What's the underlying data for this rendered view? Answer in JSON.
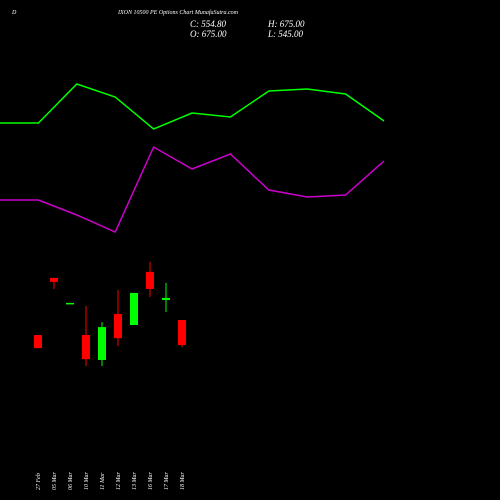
{
  "chart_data": [
    {
      "type": "candlestick",
      "title": "IXON 10500 PE Options  Chart MunafaSutra.com",
      "prefix": "D",
      "stats": [
        "C: 554.80",
        "H: 675.00",
        "O: 675.00",
        "L: 545.00"
      ],
      "categories": [
        "27 Feb",
        "05 Mar",
        "06 Mar",
        "10 Mar",
        "11 Mar",
        "12 Mar",
        "13 Mar",
        "16 Mar",
        "17 Mar",
        "18 Mar"
      ],
      "open": [
        603,
        877,
        755,
        603,
        483,
        704,
        651,
        906,
        771,
        675
      ],
      "high": [
        603,
        877,
        757,
        742,
        665,
        819,
        805,
        954,
        853,
        675
      ],
      "low": [
        540,
        824,
        755,
        454,
        454,
        550,
        651,
        786,
        713,
        545
      ],
      "close": [
        540,
        858,
        757,
        487,
        641,
        588,
        805,
        824,
        781,
        554.8
      ],
      "up_color": "#00ff00",
      "down_color": "#ff0000",
      "ylim": [
        387,
        1011
      ]
    },
    {
      "type": "line",
      "x": [
        0,
        1,
        2,
        3,
        4,
        5,
        6,
        7,
        8,
        9,
        10
      ],
      "xlim": [
        0,
        10
      ],
      "series": [
        {
          "color": "#00ff00",
          "values": [
            63.5,
            63.5,
            83,
            76.5,
            60.5,
            68.5,
            66.5,
            79.5,
            80.5,
            78,
            64.5
          ]
        },
        {
          "color": "#cc00cc",
          "values": [
            25,
            25,
            17.5,
            9,
            51.5,
            40.5,
            48,
            30,
            26.5,
            27.5,
            44.5
          ]
        }
      ],
      "ylim": [
        0,
        100
      ]
    }
  ]
}
